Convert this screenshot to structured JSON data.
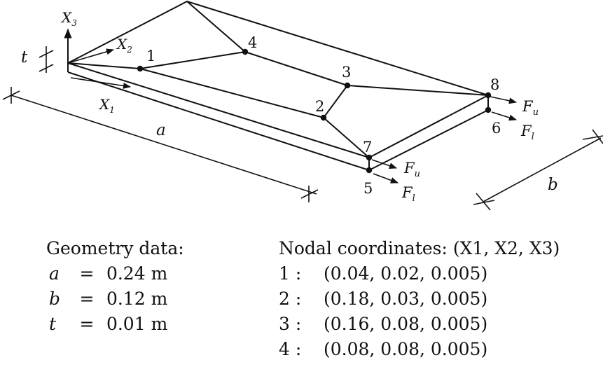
{
  "colors": {
    "line": "#111111",
    "background": "#ffffff"
  },
  "figure": {
    "axis_labels": {
      "x3": "X",
      "x3_sub": "3",
      "x2": "X",
      "x2_sub": "2",
      "x1": "X",
      "x1_sub": "1"
    },
    "dimensions": {
      "a": "a",
      "b": "b",
      "t": "t"
    },
    "node_labels": [
      "1",
      "2",
      "3",
      "4",
      "5",
      "6",
      "7",
      "8"
    ],
    "forces": {
      "upper": "F",
      "upper_sub": "u",
      "lower": "F",
      "lower_sub": "l"
    }
  },
  "geometry": {
    "heading": "Geometry data:",
    "rows": [
      {
        "var": "a",
        "eq": "=",
        "value": "0.24 m"
      },
      {
        "var": "b",
        "eq": "=",
        "value": "0.12 m"
      },
      {
        "var": "t",
        "eq": "=",
        "value": "0.01 m"
      }
    ]
  },
  "nodal": {
    "heading": "Nodal coordinates: (X1, X2, X3)",
    "rows": [
      {
        "id": "1 :",
        "coords": "(0.04,  0.02,  0.005)"
      },
      {
        "id": "2 :",
        "coords": "(0.18,  0.03,  0.005)"
      },
      {
        "id": "3 :",
        "coords": "(0.16,  0.08,  0.005)"
      },
      {
        "id": "4 :",
        "coords": "(0.08,  0.08,  0.005)"
      }
    ]
  }
}
